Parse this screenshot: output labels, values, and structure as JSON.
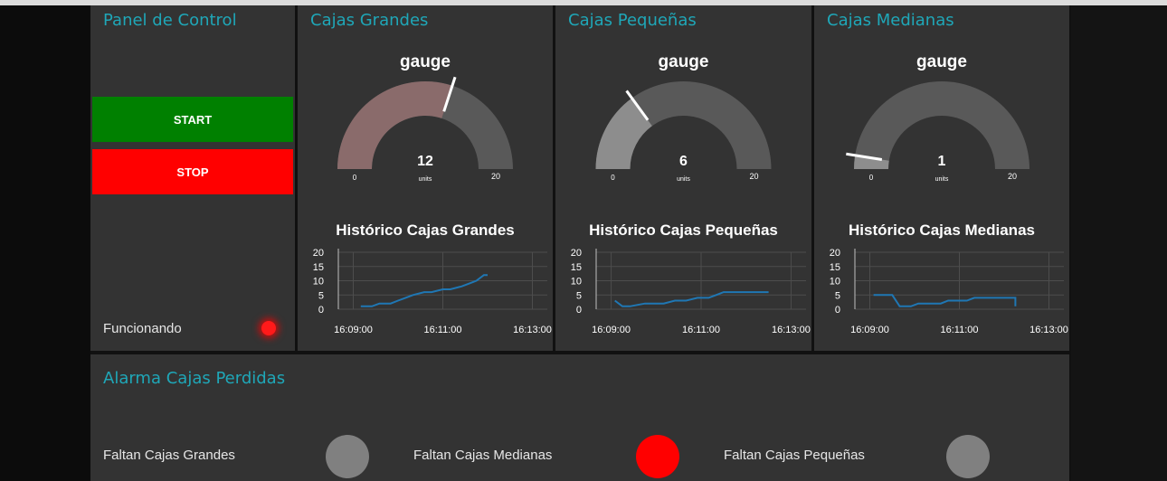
{
  "panel": {
    "title": "Panel de Control",
    "start_label": "START",
    "stop_label": "STOP",
    "status_label": "Funcionando",
    "start_color": "#008000",
    "stop_color": "#ff0000",
    "status_led_color": "#ff1a1a"
  },
  "groups": [
    {
      "title": "Cajas Grandes",
      "gauge": {
        "label": "gauge",
        "value": 12,
        "units": "units",
        "min": 0,
        "max": 20,
        "fill_color": "#8a6b6b",
        "min_label": "0",
        "max_label": "20"
      },
      "chart_title": "Histórico Cajas Grandes"
    },
    {
      "title": "Cajas Pequeñas",
      "gauge": {
        "label": "gauge",
        "value": 6,
        "units": "units",
        "min": 0,
        "max": 20,
        "fill_color": "#8d8d8d",
        "min_label": "0",
        "max_label": "20"
      },
      "chart_title": "Histórico Cajas Pequeñas"
    },
    {
      "title": "Cajas Medianas",
      "gauge": {
        "label": "gauge",
        "value": 1,
        "units": "units",
        "min": 0,
        "max": 20,
        "fill_color": "#8d8d8d",
        "min_label": "0",
        "max_label": "20"
      },
      "chart_title": "Histórico Cajas Medianas"
    }
  ],
  "chart_data": [
    {
      "type": "line",
      "title": "Histórico Cajas Grandes",
      "xlabel": "",
      "ylabel": "",
      "x_ticks": [
        "16:09:00",
        "16:11:00",
        "16:13:00"
      ],
      "y_ticks": [
        0,
        5,
        10,
        15,
        20
      ],
      "xlim": [
        "16:08:40",
        "16:13:20"
      ],
      "ylim": [
        0,
        20
      ],
      "grid": true,
      "series": [
        {
          "color": "#1f77b4",
          "x": [
            "16:09:10",
            "16:09:25",
            "16:09:35",
            "16:09:50",
            "16:10:00",
            "16:10:10",
            "16:10:20",
            "16:10:35",
            "16:10:45",
            "16:11:00",
            "16:11:10",
            "16:11:25",
            "16:11:35",
            "16:11:45",
            "16:11:55",
            "16:12:00"
          ],
          "y": [
            1,
            1,
            2,
            2,
            3,
            4,
            5,
            6,
            6,
            7,
            7,
            8,
            9,
            10,
            12,
            12
          ]
        }
      ]
    },
    {
      "type": "line",
      "title": "Histórico Cajas Pequeñas",
      "xlabel": "",
      "ylabel": "",
      "x_ticks": [
        "16:09:00",
        "16:11:00",
        "16:13:00"
      ],
      "y_ticks": [
        0,
        5,
        10,
        15,
        20
      ],
      "xlim": [
        "16:08:40",
        "16:13:20"
      ],
      "ylim": [
        0,
        20
      ],
      "grid": true,
      "series": [
        {
          "color": "#1f77b4",
          "x": [
            "16:09:05",
            "16:09:15",
            "16:09:25",
            "16:09:45",
            "16:10:10",
            "16:10:25",
            "16:10:40",
            "16:10:55",
            "16:11:10",
            "16:11:20",
            "16:11:30",
            "16:12:30"
          ],
          "y": [
            3,
            1,
            1,
            2,
            2,
            3,
            3,
            4,
            4,
            5,
            6,
            6
          ]
        }
      ]
    },
    {
      "type": "line",
      "title": "Histórico Cajas Medianas",
      "xlabel": "",
      "ylabel": "",
      "x_ticks": [
        "16:09:00",
        "16:11:00",
        "16:13:00"
      ],
      "y_ticks": [
        0,
        5,
        10,
        15,
        20
      ],
      "xlim": [
        "16:08:40",
        "16:13:20"
      ],
      "ylim": [
        0,
        20
      ],
      "grid": true,
      "series": [
        {
          "color": "#1f77b4",
          "x": [
            "16:09:05",
            "16:09:30",
            "16:09:40",
            "16:09:55",
            "16:10:05",
            "16:10:35",
            "16:10:45",
            "16:11:10",
            "16:11:20",
            "16:12:15",
            "16:12:15"
          ],
          "y": [
            5,
            5,
            1,
            1,
            2,
            2,
            3,
            3,
            4,
            4,
            1
          ]
        }
      ]
    }
  ],
  "alarms": {
    "title": "Alarma Cajas Perdidas",
    "items": [
      {
        "label": "Faltan Cajas Grandes",
        "active": false,
        "color": "#808080"
      },
      {
        "label": "Faltan Cajas Medianas",
        "active": true,
        "color": "#ff0000"
      },
      {
        "label": "Faltan Cajas Pequeñas",
        "active": false,
        "color": "#808080"
      }
    ]
  }
}
